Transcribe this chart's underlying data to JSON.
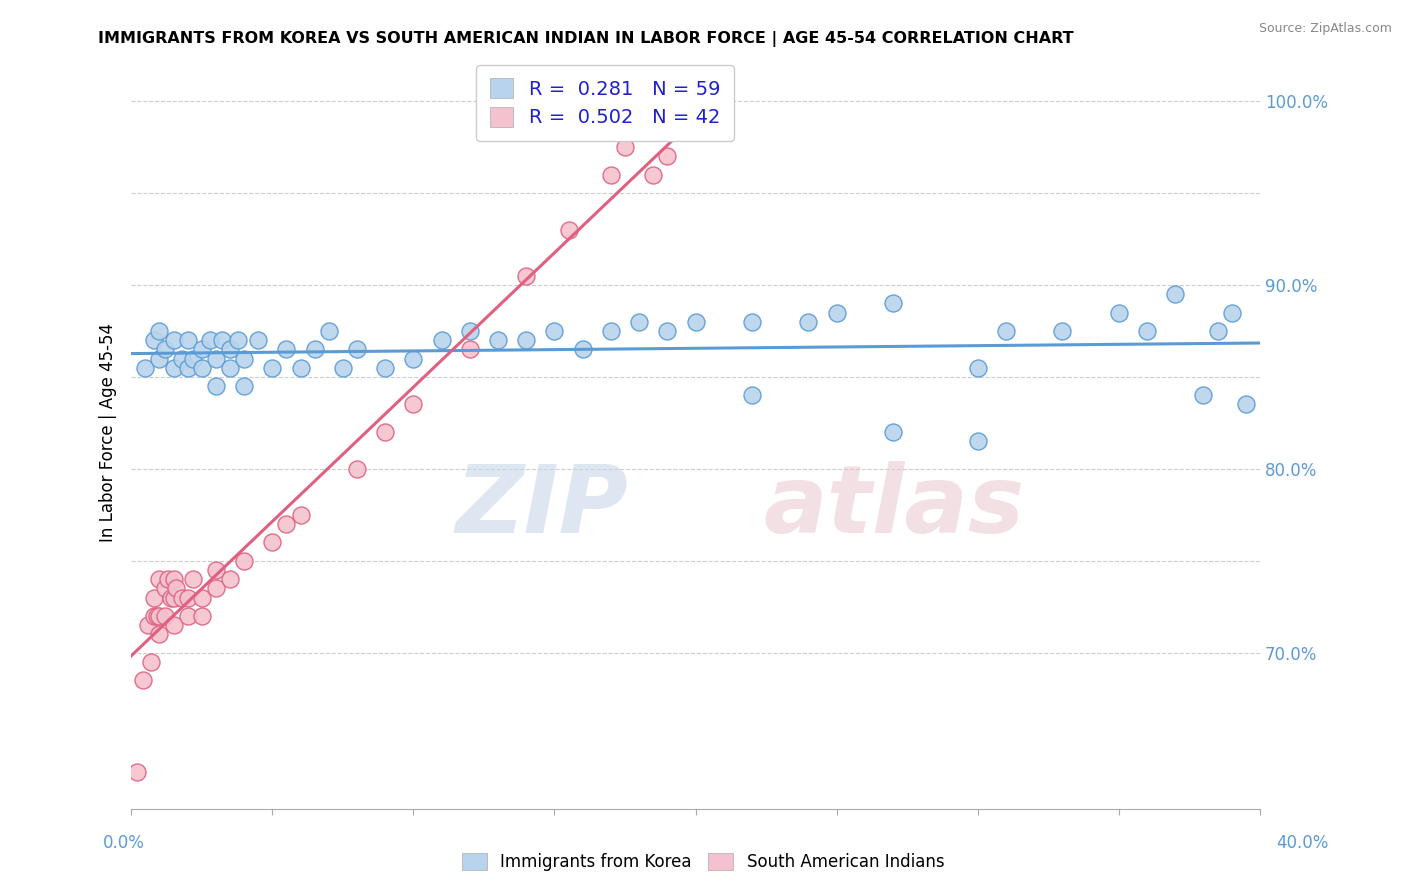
{
  "title": "IMMIGRANTS FROM KOREA VS SOUTH AMERICAN INDIAN IN LABOR FORCE | AGE 45-54 CORRELATION CHART",
  "source": "Source: ZipAtlas.com",
  "ylabel": "In Labor Force | Age 45-54",
  "y_ticks": [
    0.7,
    0.75,
    0.8,
    0.85,
    0.9,
    0.95,
    1.0
  ],
  "y_tick_labels": [
    "70.0%",
    "",
    "80.0%",
    "",
    "90.0%",
    "",
    "100.0%"
  ],
  "x_lim": [
    0.0,
    0.4
  ],
  "y_lim": [
    0.615,
    1.025
  ],
  "korea_R": 0.281,
  "korea_N": 59,
  "sai_R": 0.502,
  "sai_N": 42,
  "korea_color": "#b8d4ec",
  "korea_line_color": "#5b9bd5",
  "sai_color": "#f4c2ce",
  "sai_line_color": "#e06080",
  "korea_scatter_x": [
    0.005,
    0.008,
    0.01,
    0.01,
    0.012,
    0.015,
    0.015,
    0.018,
    0.02,
    0.02,
    0.022,
    0.025,
    0.025,
    0.028,
    0.03,
    0.03,
    0.032,
    0.035,
    0.035,
    0.038,
    0.04,
    0.04,
    0.045,
    0.05,
    0.055,
    0.06,
    0.065,
    0.07,
    0.075,
    0.08,
    0.09,
    0.1,
    0.11,
    0.12,
    0.13,
    0.14,
    0.15,
    0.16,
    0.17,
    0.18,
    0.19,
    0.2,
    0.22,
    0.24,
    0.25,
    0.27,
    0.3,
    0.31,
    0.33,
    0.35,
    0.36,
    0.37,
    0.38,
    0.385,
    0.39,
    0.395,
    0.3,
    0.27,
    0.22
  ],
  "korea_scatter_y": [
    0.855,
    0.87,
    0.86,
    0.875,
    0.865,
    0.855,
    0.87,
    0.86,
    0.855,
    0.87,
    0.86,
    0.855,
    0.865,
    0.87,
    0.845,
    0.86,
    0.87,
    0.855,
    0.865,
    0.87,
    0.845,
    0.86,
    0.87,
    0.855,
    0.865,
    0.855,
    0.865,
    0.875,
    0.855,
    0.865,
    0.855,
    0.86,
    0.87,
    0.875,
    0.87,
    0.87,
    0.875,
    0.865,
    0.875,
    0.88,
    0.875,
    0.88,
    0.88,
    0.88,
    0.885,
    0.89,
    0.855,
    0.875,
    0.875,
    0.885,
    0.875,
    0.895,
    0.84,
    0.875,
    0.885,
    0.835,
    0.815,
    0.82,
    0.84
  ],
  "sai_scatter_x": [
    0.002,
    0.004,
    0.006,
    0.007,
    0.008,
    0.008,
    0.009,
    0.01,
    0.01,
    0.01,
    0.012,
    0.012,
    0.013,
    0.014,
    0.015,
    0.015,
    0.015,
    0.016,
    0.018,
    0.02,
    0.02,
    0.022,
    0.025,
    0.025,
    0.03,
    0.03,
    0.035,
    0.04,
    0.05,
    0.055,
    0.06,
    0.08,
    0.09,
    0.1,
    0.12,
    0.14,
    0.155,
    0.17,
    0.175,
    0.185,
    0.19,
    0.2
  ],
  "sai_scatter_y": [
    0.635,
    0.685,
    0.715,
    0.695,
    0.72,
    0.73,
    0.72,
    0.71,
    0.72,
    0.74,
    0.735,
    0.72,
    0.74,
    0.73,
    0.715,
    0.73,
    0.74,
    0.735,
    0.73,
    0.72,
    0.73,
    0.74,
    0.72,
    0.73,
    0.745,
    0.735,
    0.74,
    0.75,
    0.76,
    0.77,
    0.775,
    0.8,
    0.82,
    0.835,
    0.865,
    0.905,
    0.93,
    0.96,
    0.975,
    0.96,
    0.97,
    0.995
  ]
}
